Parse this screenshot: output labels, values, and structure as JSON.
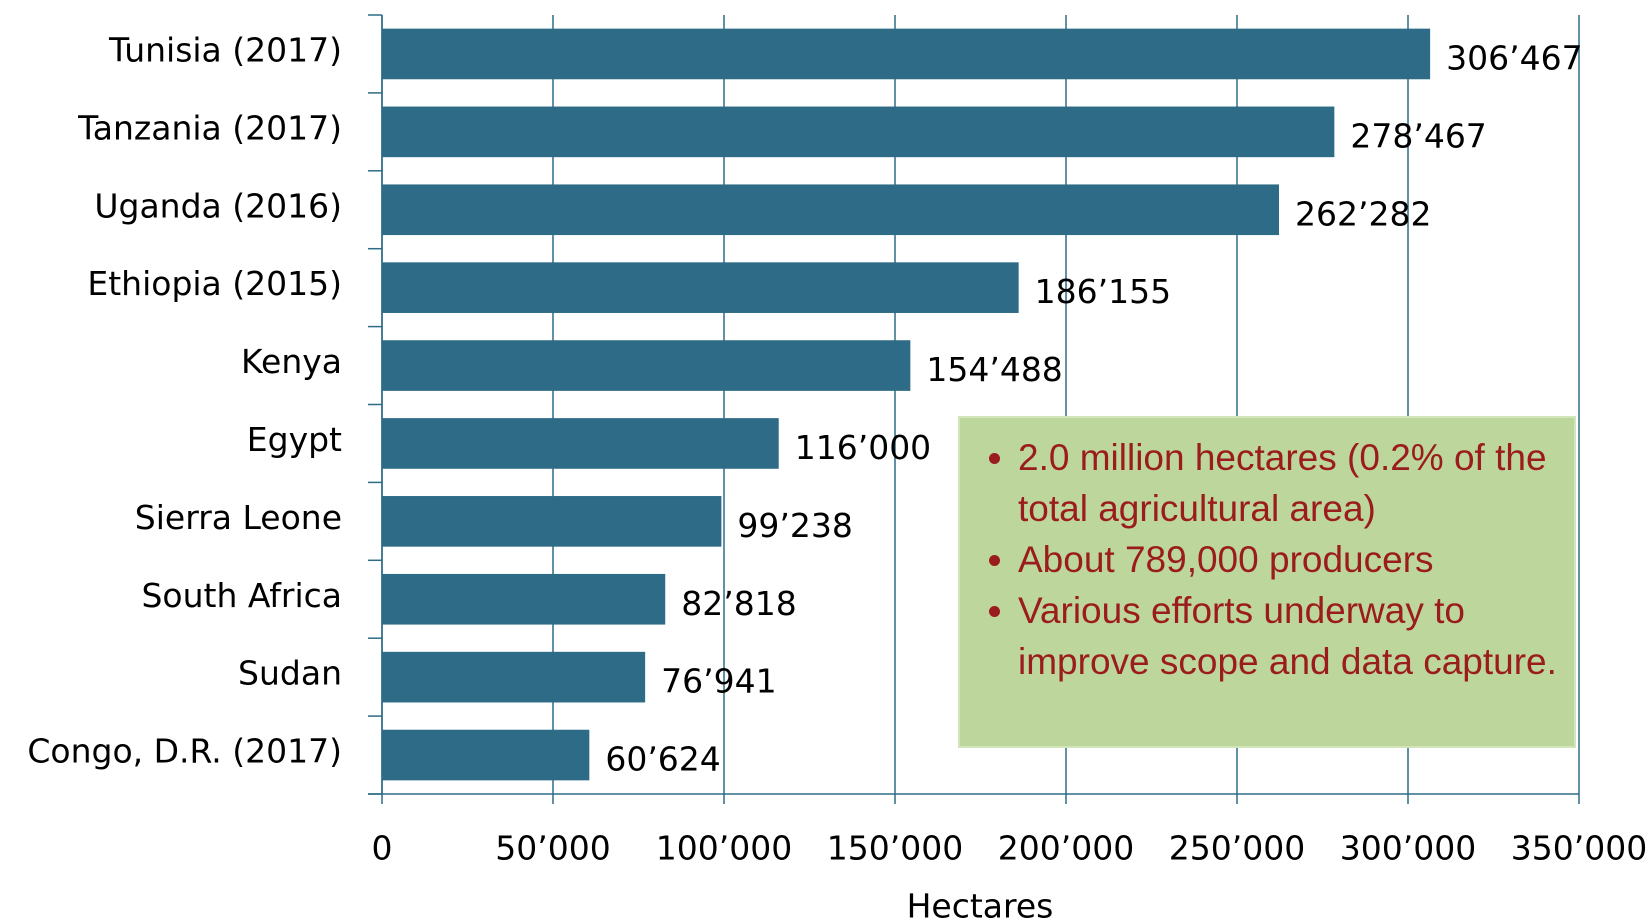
{
  "chart_data": {
    "type": "barh",
    "categories": [
      "Tunisia (2017)",
      "Tanzania (2017)",
      "Uganda (2016)",
      "Ethiopia (2015)",
      "Kenya",
      "Egypt",
      "Sierra Leone",
      "South Africa",
      "Sudan",
      "Congo, D.R. (2017)"
    ],
    "values": [
      306467,
      278467,
      262282,
      186155,
      154488,
      116000,
      99238,
      82818,
      76941,
      60624
    ],
    "value_labels": [
      "306’467",
      "278’467",
      "262’282",
      "186’155",
      "154’488",
      "116’000",
      "99’238",
      "82’818",
      "76’941",
      "60’624"
    ],
    "color": "#2e6b87",
    "xlim": [
      0,
      350000
    ],
    "xticks": [
      0,
      {
        "value": 50000,
        "label": "50’000"
      },
      {
        "value": 100000,
        "label": "100’000"
      },
      {
        "value": 150000,
        "label": "150’000"
      },
      {
        "value": 200000,
        "label": "200’000"
      },
      {
        "value": 250000,
        "label": "250’000"
      },
      {
        "value": 300000,
        "label": "300’000"
      },
      {
        "value": 350000,
        "label": "350’000"
      }
    ],
    "x_label": "Hectares",
    "grid": true,
    "annotations": [
      "2.0 million hectares (0.2% of the total agricultural area)",
      "About 789,000 producers",
      "Various efforts underway to improve scope and data capture."
    ]
  }
}
